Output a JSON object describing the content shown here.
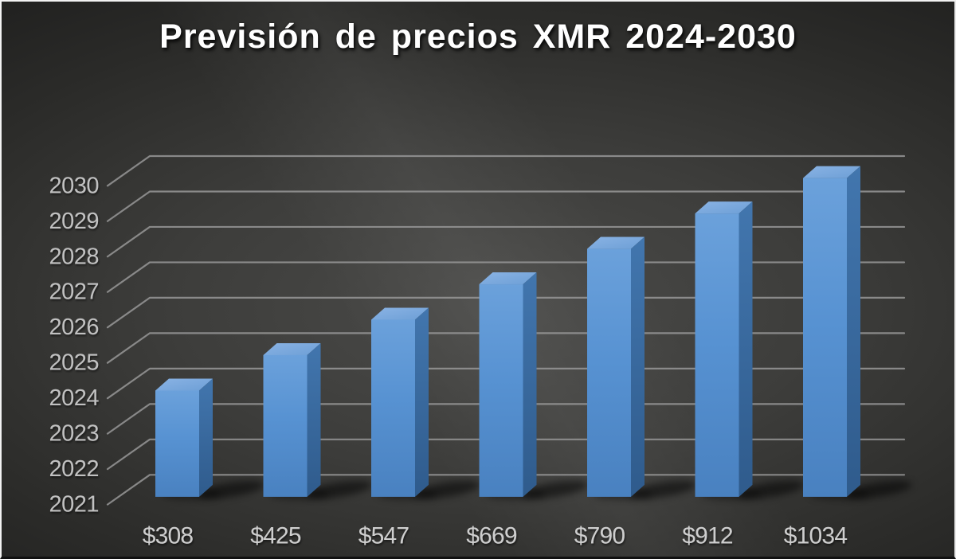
{
  "title": "Previsión de precios XMR 2024-2030",
  "chart_data": {
    "type": "bar",
    "style": "3d-column",
    "title": "Previsión de precios XMR 2024-2030",
    "categories": [
      "$308",
      "$425",
      "$547",
      "$669",
      "$790",
      "$912",
      "$1034"
    ],
    "values": [
      2024,
      2025,
      2026,
      2027,
      2028,
      2029,
      2030
    ],
    "xlabel": "",
    "ylabel": "",
    "value_axis": {
      "side": "left",
      "min": 2021,
      "max": 2030,
      "ticks": [
        2030,
        2029,
        2028,
        2027,
        2026,
        2025,
        2024,
        2023,
        2022,
        2021
      ]
    },
    "baseline": 2021,
    "grid": true,
    "legend": false,
    "colors": {
      "title_text": "#ffffff",
      "tick_label": "#c1c1c1",
      "category_label": "#cecece",
      "gridline": "#949494",
      "bar_front_top": "#6ba1db",
      "bar_front_bottom": "#4981c0",
      "bar_side_top": "#4276ae",
      "bar_side_bottom": "#2f5b8c",
      "bar_top_light": "#8ab3e4",
      "bar_top_dark": "#6d9fd6",
      "background_center": "#4b4b49",
      "background_edge": "#1e1e1d",
      "shadow": "#000000"
    }
  }
}
